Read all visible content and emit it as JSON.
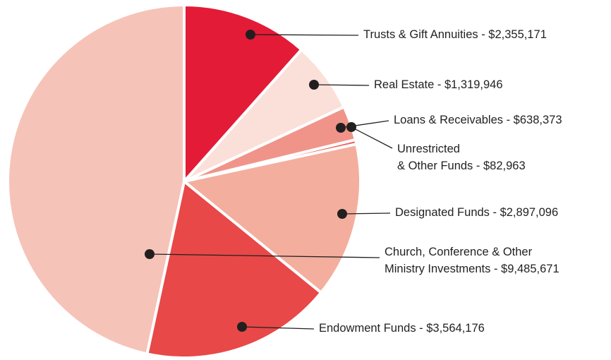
{
  "chart_data": {
    "type": "pie",
    "categories": [
      "Trusts & Gift Annuities -",
      "Real Estate -",
      "Loans & Receivables -",
      "Unrestricted\n& Other Funds -",
      "Designated Funds -",
      "Endowment Funds -",
      "Church, Conference & Other\nMinistry Investments -"
    ],
    "values": [
      2355171,
      1319946,
      638373,
      82963,
      2897096,
      3564176,
      9485671
    ],
    "value_labels": [
      "$2,355,171",
      "$1,319,946",
      "$638,373",
      "$82,963",
      "$2,897,096",
      "$3,564,176",
      "$9,485,671"
    ],
    "colors": [
      "#e31b37",
      "#fbe0da",
      "#f0948a",
      "#ec6a68",
      "#f4ae9e",
      "#e84848",
      "#f6c3b8"
    ]
  }
}
